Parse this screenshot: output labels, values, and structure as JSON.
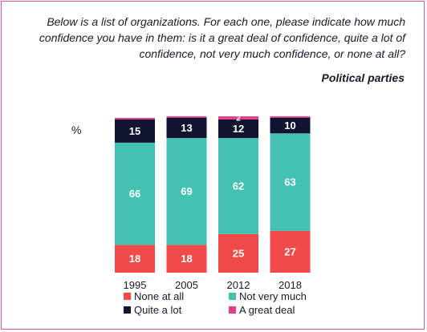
{
  "question": "Below is a list of organizations. For each one, please indicate how much confidence you have in them: is it a great deal of confidence, quite a lot of confidence, not very much confidence, or none at all?",
  "subtitle": "Political parties",
  "chart_data": {
    "type": "bar",
    "stacked": true,
    "unit_label": "%",
    "categories": [
      "1995",
      "2005",
      "2012",
      "2018"
    ],
    "series": [
      {
        "name": "None at all",
        "color": "#f04a4a",
        "values": [
          18,
          18,
          25,
          27
        ]
      },
      {
        "name": "Not very much",
        "color": "#45c1b4",
        "values": [
          66,
          69,
          62,
          63
        ]
      },
      {
        "name": "Quite a lot",
        "color": "#101430",
        "values": [
          15,
          13,
          12,
          10
        ]
      },
      {
        "name": "A great deal",
        "color": "#e63c8c",
        "values": [
          1,
          1,
          2,
          1
        ]
      }
    ],
    "data_labels_shown": {
      "None at all": [
        true,
        true,
        true,
        true
      ],
      "Not very much": [
        true,
        true,
        true,
        true
      ],
      "Quite a lot": [
        true,
        true,
        true,
        true
      ],
      "A great deal": [
        false,
        false,
        true,
        false
      ]
    },
    "ylim": [
      0,
      100
    ],
    "legend_position": "bottom"
  }
}
